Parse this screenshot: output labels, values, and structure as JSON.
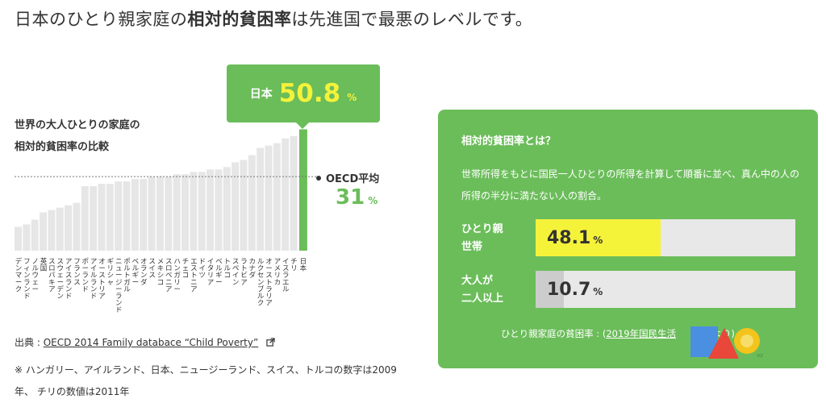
{
  "headline": {
    "prefix": "日本のひとり親家庭の",
    "emphasis": "相対的貧困率",
    "suffix": "は先進国で最悪のレベルです。"
  },
  "chart_data": {
    "type": "bar",
    "title_lines": [
      "世界の大人ひとりの家庭の",
      "相対的貧困率の比較"
    ],
    "categories": [
      "デンマーク",
      "フィンランド",
      "ノルウェー",
      "英国",
      "スロバキア",
      "スウェーデン",
      "アイスランド",
      "フランス",
      "ポーランド",
      "アイルランド",
      "オーストリア",
      "ギリシャ",
      "ニュージーランド",
      "ポルトガル",
      "ベルギー",
      "オランダ",
      "スイス",
      "メキシコ",
      "スロベニア",
      "ハンガリー",
      "チェコ",
      "エストニア",
      "ドイツ",
      "イタリア",
      "ベルギー",
      "トルコ",
      "スペイン",
      "ラトビア",
      "カナダ",
      "ルクセンブルク",
      "オーストラリア",
      "アメリカ",
      "イスラエル",
      "チリ",
      "日本"
    ],
    "values": [
      10,
      11,
      13,
      16,
      17,
      18,
      19,
      20,
      27,
      27,
      28,
      28,
      29,
      29,
      30,
      30,
      31,
      31,
      31,
      32,
      32,
      33,
      33,
      34,
      34,
      35,
      37,
      38,
      40,
      43,
      44,
      45,
      47,
      48,
      50.8
    ],
    "highlight": "日本",
    "ylim": [
      0,
      54
    ],
    "reference_line": {
      "label": "OECD平均",
      "value": 31,
      "unit": "%"
    },
    "colors": {
      "bar": "#e6e6e6",
      "highlight": "#6bbd5a",
      "reference": "#777777"
    }
  },
  "callout": {
    "label": "日本",
    "value": "50.8",
    "unit": "%"
  },
  "source": {
    "prefix": "出典 : ",
    "link_text": "OECD 2014 Family databace “Child Poverty”",
    "icon": "external-link-icon"
  },
  "note": "※ ハンガリー、アイルランド、日本、ニュージーランド、スイス、トルコの数字は2009年、 チリの数値は2011年",
  "panel": {
    "title": "相対的貧困率とは？",
    "description": "世帯所得をもとに国民一人ひとりの所得を計算して順番に並べ、真ん中の人の所得の半分に満たない人の割合。",
    "rates": [
      {
        "label_line1": "ひとり親",
        "label_line2": "世帯",
        "value": "48.1",
        "unit": "%",
        "fraction": 0.481,
        "fill_color": "#f5f23a"
      },
      {
        "label_line1": "大人が",
        "label_line2": "二人以上",
        "value": "10.7",
        "unit": "%",
        "fraction": 0.107,
        "fill_color": "#cccccc"
      }
    ],
    "footer_prefix": "ひとり親家庭の貧困率 : (",
    "footer_link": "2019年国民生活",
    "footer_suffix": "果より)"
  },
  "colors": {
    "accent": "#6bbd5a",
    "yellow": "#f5f23a",
    "text": "#333333"
  },
  "logo_icon": "logo-badge-icon"
}
